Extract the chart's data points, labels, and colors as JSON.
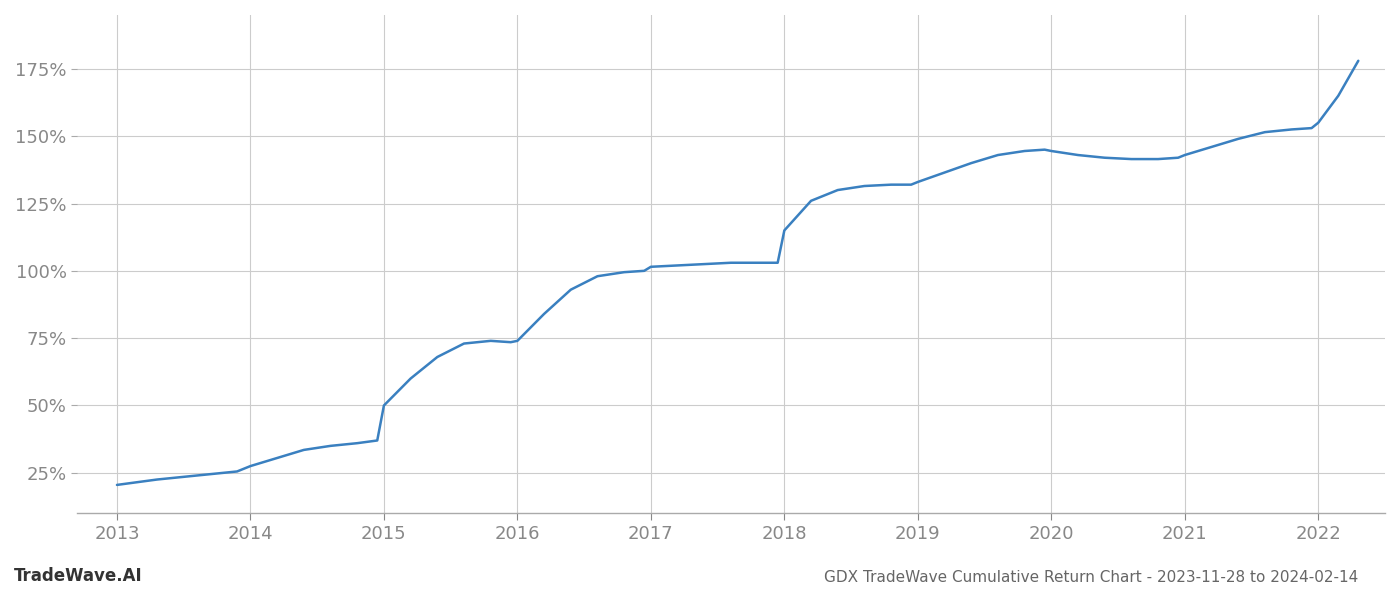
{
  "title": "GDX TradeWave Cumulative Return Chart - 2023-11-28 to 2024-02-14",
  "watermark": "TradeWave.AI",
  "line_color": "#3a80c0",
  "background_color": "#ffffff",
  "grid_color": "#cccccc",
  "tick_color": "#888888",
  "title_color": "#666666",
  "watermark_color": "#333333",
  "x_years": [
    2013,
    2014,
    2015,
    2016,
    2017,
    2018,
    2019,
    2020,
    2021,
    2022
  ],
  "yticks": [
    25,
    50,
    75,
    100,
    125,
    150,
    175
  ],
  "xlim": [
    2012.7,
    2022.5
  ],
  "ylim": [
    10,
    195
  ],
  "data_x": [
    2013.0,
    2013.15,
    2013.3,
    2013.5,
    2013.7,
    2013.9,
    2014.0,
    2014.2,
    2014.4,
    2014.6,
    2014.8,
    2014.95,
    2015.0,
    2015.2,
    2015.4,
    2015.6,
    2015.8,
    2015.95,
    2016.0,
    2016.2,
    2016.4,
    2016.6,
    2016.8,
    2016.95,
    2017.0,
    2017.2,
    2017.4,
    2017.6,
    2017.8,
    2017.95,
    2018.0,
    2018.2,
    2018.4,
    2018.6,
    2018.8,
    2018.95,
    2019.0,
    2019.2,
    2019.4,
    2019.6,
    2019.8,
    2019.95,
    2020.0,
    2020.2,
    2020.4,
    2020.6,
    2020.8,
    2020.95,
    2021.0,
    2021.2,
    2021.4,
    2021.6,
    2021.8,
    2021.95,
    2022.0,
    2022.15,
    2022.3
  ],
  "data_y": [
    20.5,
    21.5,
    22.5,
    23.5,
    24.5,
    25.5,
    27.5,
    30.5,
    33.5,
    35.0,
    36.0,
    37.0,
    50.0,
    60.0,
    68.0,
    73.0,
    74.0,
    73.5,
    74.0,
    84.0,
    93.0,
    98.0,
    99.5,
    100.0,
    101.5,
    102.0,
    102.5,
    103.0,
    103.0,
    103.0,
    115.0,
    126.0,
    130.0,
    131.5,
    132.0,
    132.0,
    133.0,
    136.5,
    140.0,
    143.0,
    144.5,
    145.0,
    144.5,
    143.0,
    142.0,
    141.5,
    141.5,
    142.0,
    143.0,
    146.0,
    149.0,
    151.5,
    152.5,
    153.0,
    155.0,
    165.0,
    178.0
  ],
  "line_width": 1.8,
  "tick_fontsize": 13,
  "title_fontsize": 11,
  "watermark_fontsize": 12
}
